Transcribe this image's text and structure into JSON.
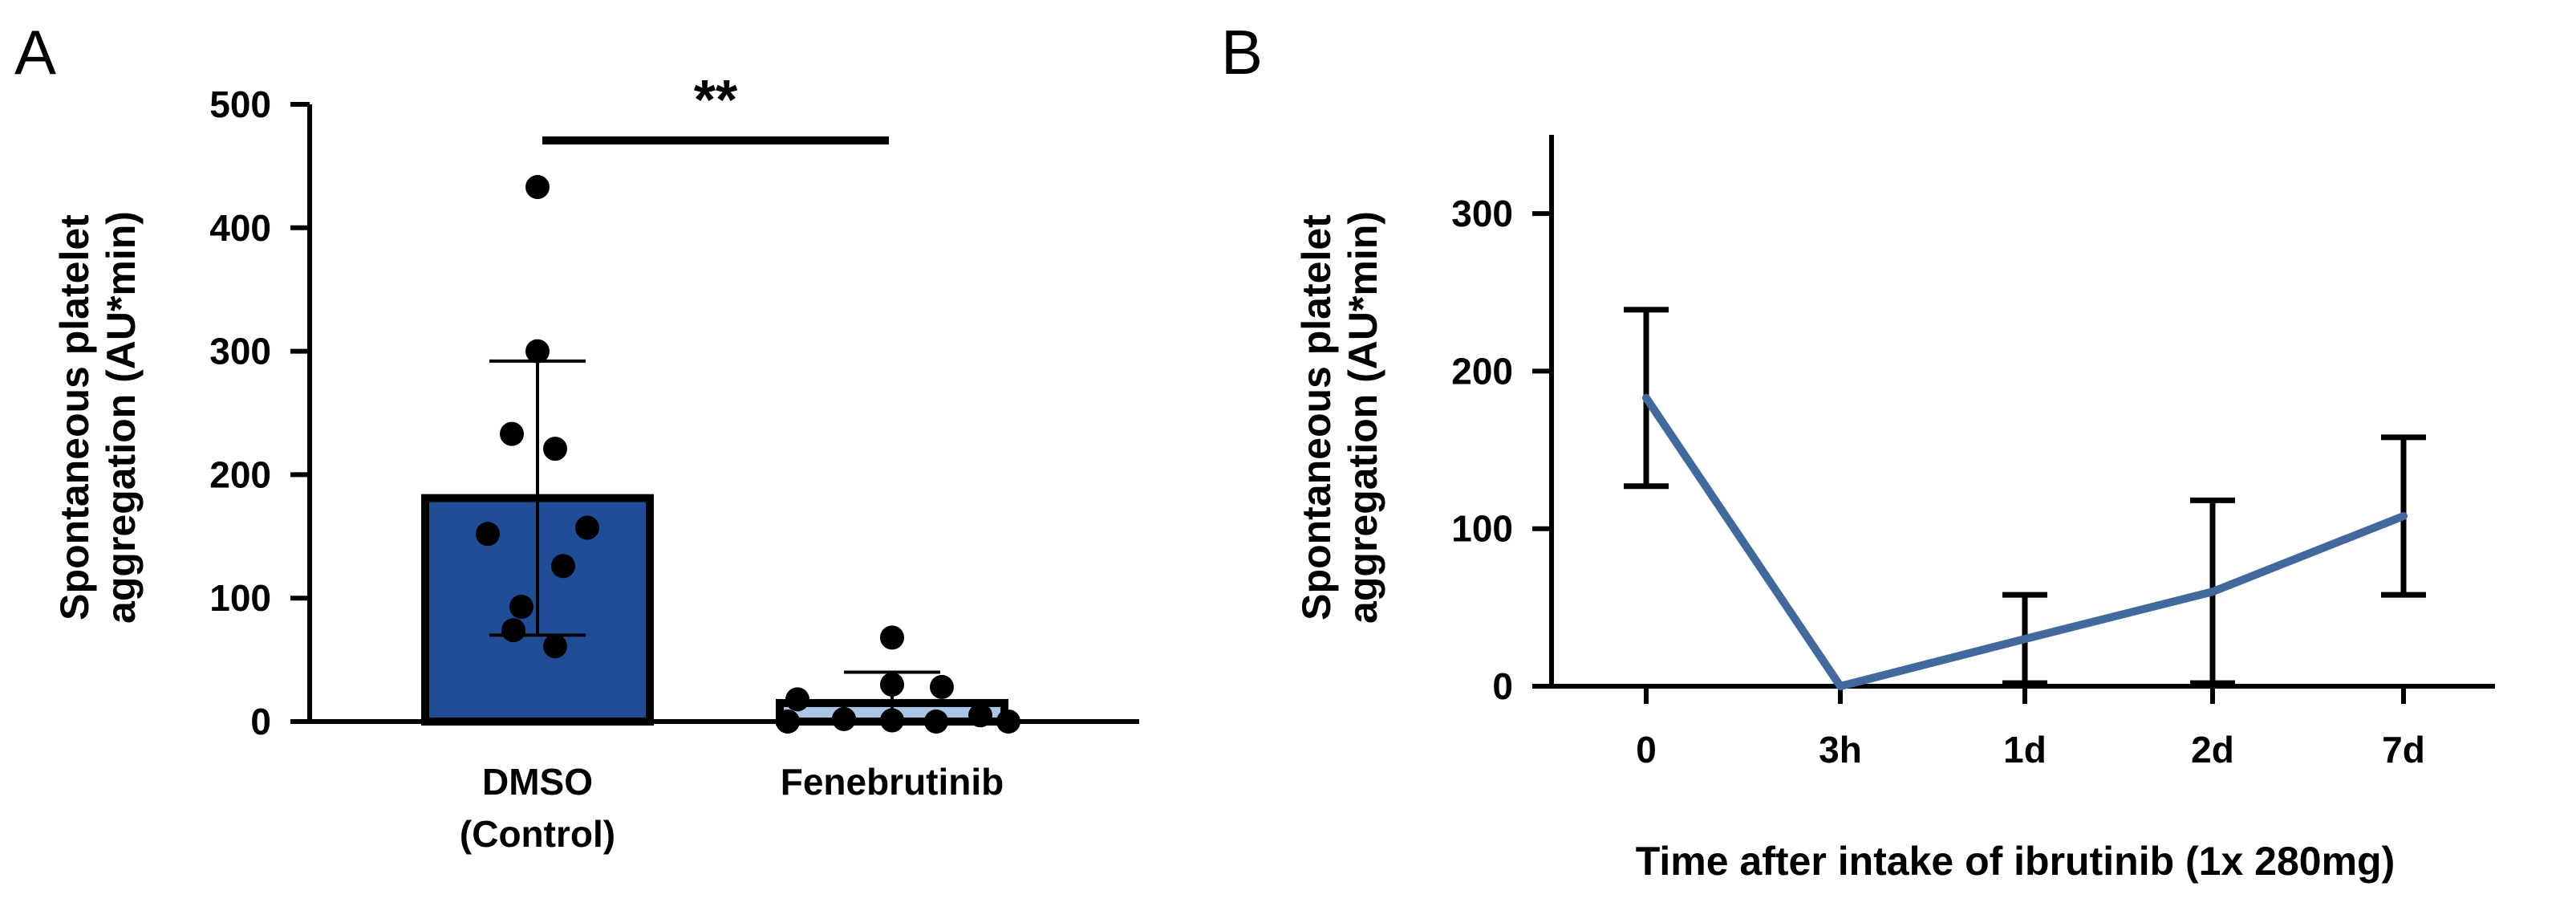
{
  "chart_data": [
    {
      "panel": "A",
      "type": "bar",
      "categories": [
        "DMSO",
        "Fenebrutinib"
      ],
      "category_sublabels": [
        "(Control)",
        ""
      ],
      "ylabel_lines": [
        "Spontaneous platelet",
        "aggregation (AU*min)"
      ],
      "ylim": [
        0,
        500
      ],
      "yticks": [
        0,
        100,
        200,
        300,
        400,
        500
      ],
      "values": [
        181,
        15
      ],
      "error": [
        111,
        25
      ],
      "bar_colors": [
        "#1f4e97",
        "#a9c4e5"
      ],
      "points": [
        [
          433,
          300,
          233,
          221,
          157,
          152,
          126,
          93,
          74,
          61
        ],
        [
          68,
          30,
          28,
          18,
          5,
          2,
          1,
          0,
          0,
          0
        ]
      ],
      "significance": "**"
    },
    {
      "panel": "B",
      "type": "line",
      "categories": [
        "0",
        "3h",
        "1d",
        "2d",
        "7d"
      ],
      "values": [
        183,
        0,
        30,
        60,
        108
      ],
      "error": [
        56,
        0,
        28,
        58,
        50
      ],
      "ylim": [
        0,
        350
      ],
      "yticks": [
        0,
        100,
        200,
        300
      ],
      "xlabel": "Time after intake of ibrutinib (1x 280mg)",
      "ylabel_lines": [
        "Spontaneous platelet",
        "aggregation (AU*min)"
      ],
      "line_color": "#41699e"
    }
  ]
}
